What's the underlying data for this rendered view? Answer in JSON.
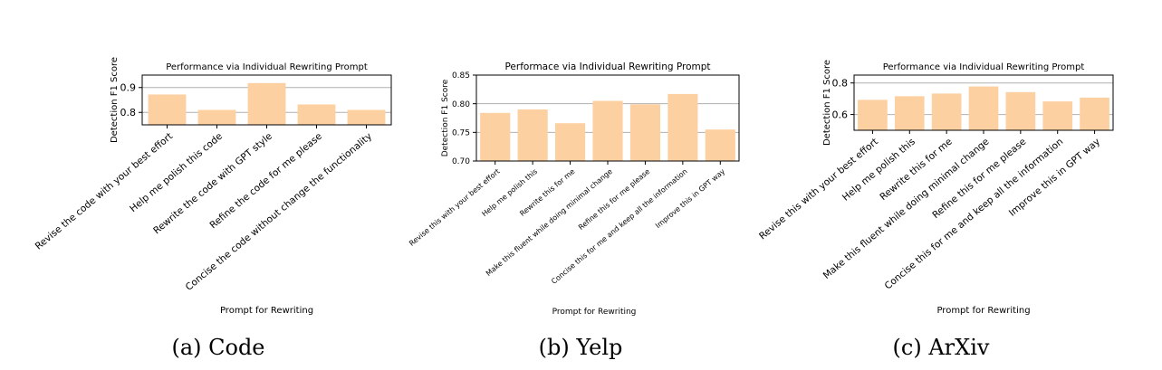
{
  "chart_data": [
    {
      "type": "bar",
      "title": "Performance via Individual Rewriting Prompt",
      "xlabel": "Prompt for Rewriting",
      "ylabel": "Detection F1 Score",
      "caption": "(a) Code",
      "categories": [
        "Revise the code with your best effort",
        "Help me polish this code",
        "Rewrite the code with GPT style",
        "Refine the code for me please",
        "Concise the code without change the functionality"
      ],
      "values": [
        0.872,
        0.81,
        0.918,
        0.832,
        0.81
      ],
      "ylim": [
        0.75,
        0.95
      ],
      "yticks": [
        0.8,
        0.9
      ],
      "ytick_labels": [
        "0.8",
        "0.9"
      ],
      "grid": "horizontal",
      "bar_color": "#fdd0a2"
    },
    {
      "type": "bar",
      "title": "Performace via Individual Rewriting Prompt",
      "xlabel": "Prompt for Rewriting",
      "ylabel": "Detection F1 Score",
      "caption": "(b) Yelp",
      "categories": [
        "Revise this with your best effort",
        "Help me polish this",
        "Rewrite this for me",
        "Make this fluent while doing minimal change",
        "Refine this for me please",
        "Concise this for me and keep all the information",
        "Improve this in GPT way"
      ],
      "values": [
        0.784,
        0.79,
        0.766,
        0.805,
        0.799,
        0.817,
        0.755
      ],
      "ylim": [
        0.7,
        0.85
      ],
      "yticks": [
        0.7,
        0.75,
        0.8,
        0.85
      ],
      "ytick_labels": [
        "0.70",
        "0.75",
        "0.80",
        "0.85"
      ],
      "grid": "horizontal",
      "bar_color": "#fdd0a2"
    },
    {
      "type": "bar",
      "title": "Performance via Individual Rewriting Prompt",
      "xlabel": "Prompt for Rewriting",
      "ylabel": "Detection F1 Score",
      "caption": "(c) ArXiv",
      "categories": [
        "Revise this with your best effort",
        "Help me polish this",
        "Rewrite this for me",
        "Make this fluent while doing minimal change",
        "Refine this for me please",
        "Concise this for me and keep all the information",
        "Improve this in GPT way"
      ],
      "values": [
        0.693,
        0.716,
        0.733,
        0.778,
        0.742,
        0.683,
        0.707
      ],
      "ylim": [
        0.5,
        0.85
      ],
      "yticks": [
        0.6,
        0.8
      ],
      "ytick_labels": [
        "0.6",
        "0.8"
      ],
      "grid": "horizontal",
      "bar_color": "#fdd0a2"
    }
  ]
}
